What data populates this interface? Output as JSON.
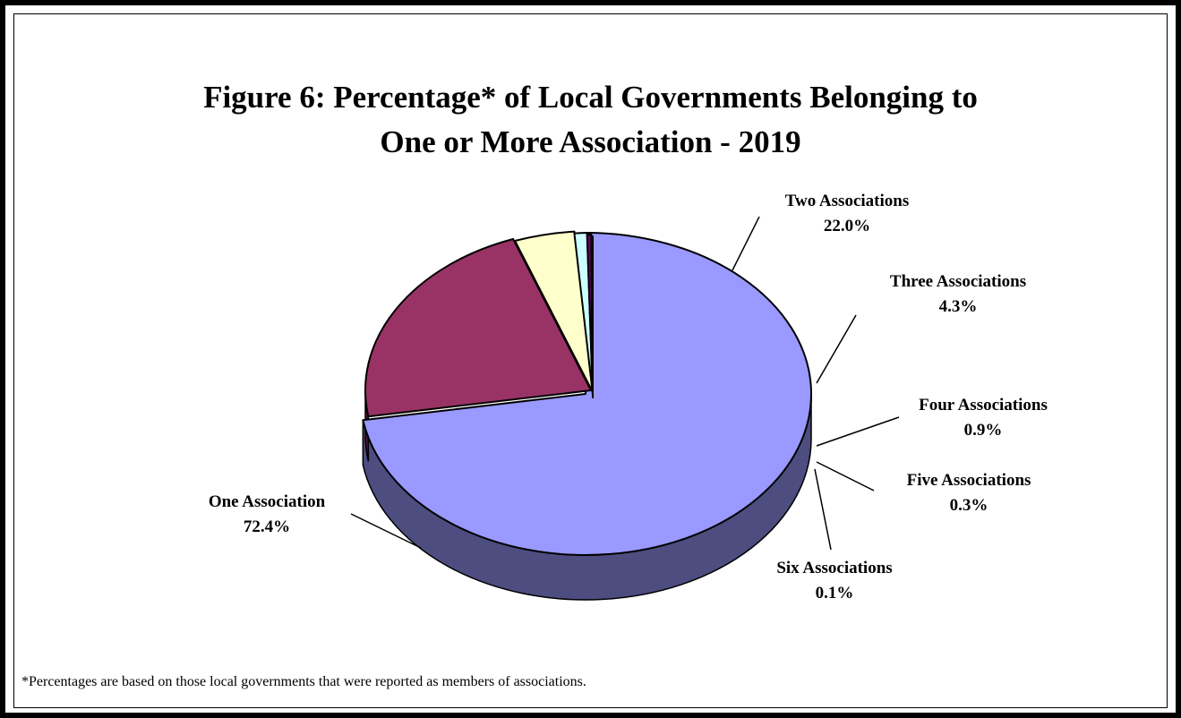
{
  "chart_data": {
    "type": "pie",
    "title_lines": [
      "Figure 6:  Percentage* of Local Governments Belonging to",
      "One or More Association - 2019"
    ],
    "unit": "%",
    "style": "3d",
    "slices": [
      {
        "label": "One Association",
        "value": 72.4,
        "display": "72.4%",
        "color": "#9999ff",
        "side_color": "#4d4d80"
      },
      {
        "label": "Two Associations",
        "value": 22.0,
        "display": "22.0%",
        "color": "#993366",
        "side_color": "#4d1a33"
      },
      {
        "label": "Three Associations",
        "value": 4.3,
        "display": "4.3%",
        "color": "#ffffcc",
        "side_color": "#80806a"
      },
      {
        "label": "Four Associations",
        "value": 0.9,
        "display": "0.9%",
        "color": "#ccffff",
        "side_color": "#668080"
      },
      {
        "label": "Five Associations",
        "value": 0.3,
        "display": "0.3%",
        "color": "#660066",
        "side_color": "#330033"
      },
      {
        "label": "Six Associations",
        "value": 0.1,
        "display": "0.1%",
        "color": "#ff8080",
        "side_color": "#804040"
      }
    ],
    "footnote": "*Percentages are based on those local governments that were reported as members of associations."
  }
}
